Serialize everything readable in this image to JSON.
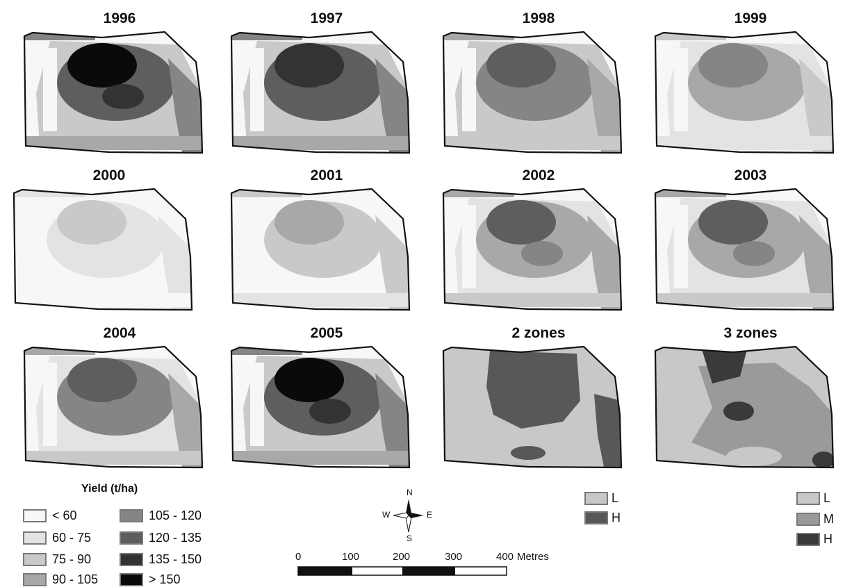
{
  "panels": [
    {
      "title": "1996",
      "levels": [
        3,
        5,
        7,
        4
      ]
    },
    {
      "title": "1997",
      "levels": [
        3,
        5,
        6,
        4
      ]
    },
    {
      "title": "1998",
      "levels": [
        3,
        4,
        5,
        3
      ]
    },
    {
      "title": "1999",
      "levels": [
        2,
        3,
        4,
        2
      ]
    },
    {
      "title": "2000",
      "levels": [
        1,
        1,
        2,
        1
      ]
    },
    {
      "title": "2001",
      "levels": [
        1,
        2,
        3,
        2
      ]
    },
    {
      "title": "2002",
      "levels": [
        2,
        3,
        5,
        3
      ]
    },
    {
      "title": "2003",
      "levels": [
        2,
        3,
        5,
        3
      ]
    },
    {
      "title": "2004",
      "levels": [
        2,
        4,
        5,
        3
      ]
    },
    {
      "title": "2005",
      "levels": [
        3,
        5,
        7,
        4
      ]
    },
    {
      "title": "2 zones",
      "zones": 2
    },
    {
      "title": "3 zones",
      "zones": 3
    }
  ],
  "legend": {
    "title": "Yield (t/ha)",
    "classes": [
      {
        "label": "< 60",
        "color": "#f7f7f7"
      },
      {
        "label": "60 - 75",
        "color": "#e3e3e3"
      },
      {
        "label": "75 - 90",
        "color": "#c9c9c9"
      },
      {
        "label": "90 - 105",
        "color": "#a8a8a8"
      },
      {
        "label": "105 - 120",
        "color": "#858585"
      },
      {
        "label": "120 - 135",
        "color": "#5e5e5e"
      },
      {
        "label": "135 - 150",
        "color": "#333333"
      },
      {
        "label": "> 150",
        "color": "#0a0a0a"
      }
    ]
  },
  "zone_legend_2": [
    {
      "label": "L",
      "color": "#c8c8c8"
    },
    {
      "label": "H",
      "color": "#585858"
    }
  ],
  "zone_legend_3": [
    {
      "label": "L",
      "color": "#c8c8c8"
    },
    {
      "label": "M",
      "color": "#9a9a9a"
    },
    {
      "label": "H",
      "color": "#3a3a3a"
    }
  ],
  "north_arrow": {
    "n": "N",
    "s": "S",
    "e": "E",
    "w": "W"
  },
  "scale_bar": {
    "ticks": [
      "0",
      "100",
      "200",
      "300",
      "400"
    ],
    "unit": "Metres"
  }
}
